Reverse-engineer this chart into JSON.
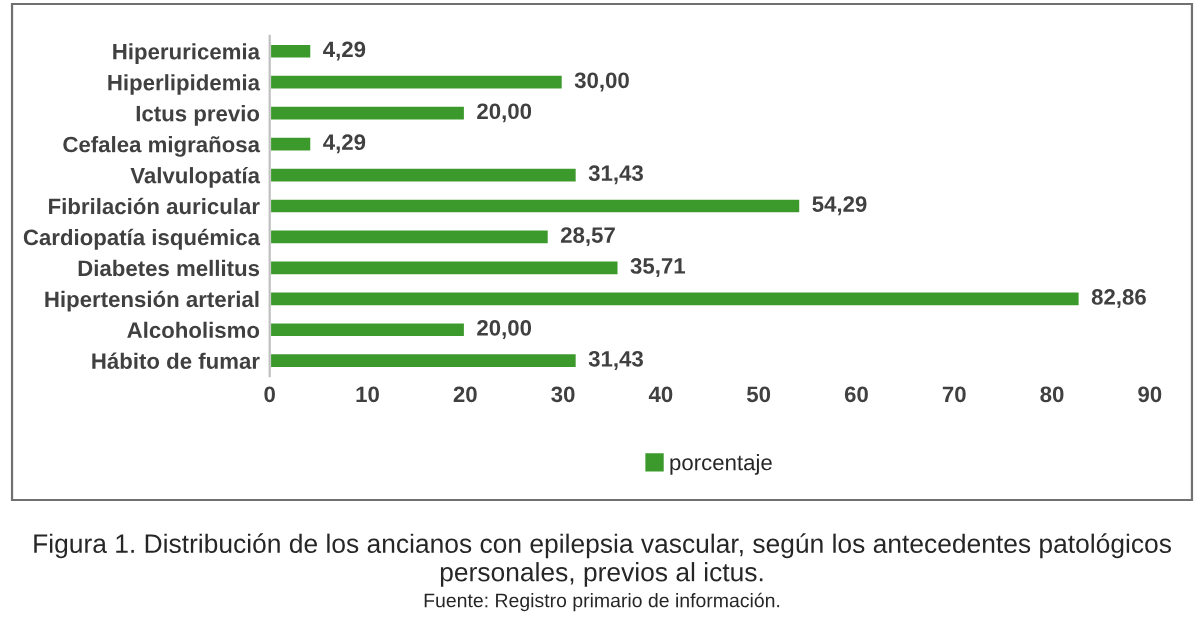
{
  "chart_data": {
    "type": "bar",
    "orientation": "horizontal",
    "categories": [
      "Hiperuricemia",
      "Hiperlipidemia",
      "Ictus previo",
      "Cefalea migrañosa",
      "Valvulopatía",
      "Fibrilación auricular",
      "Cardiopatía isquémica",
      "Diabetes mellitus",
      "Hipertensión arterial",
      "Alcoholismo",
      "Hábito de fumar"
    ],
    "series": [
      {
        "name": "porcentaje",
        "color": "#3c9a2c",
        "values": [
          4.29,
          30.0,
          20.0,
          4.29,
          31.43,
          54.29,
          28.57,
          35.71,
          82.86,
          20.0,
          31.43
        ],
        "value_labels": [
          "4,29",
          "30,00",
          "20,00",
          "4,29",
          "31,43",
          "54,29",
          "28,57",
          "35,71",
          "82,86",
          "20,00",
          "31,43"
        ]
      }
    ],
    "xlim": [
      0,
      90
    ],
    "xticks": [
      0,
      10,
      20,
      30,
      40,
      50,
      60,
      70,
      80,
      90
    ],
    "grid": false,
    "legend": "bottom",
    "annotations": [
      "Figura 1. Distribución de los ancianos con epilepsia vascular, según los antecedentes patológicos personales, previos al ictus.",
      "Fuente: Registro primario de información."
    ]
  }
}
